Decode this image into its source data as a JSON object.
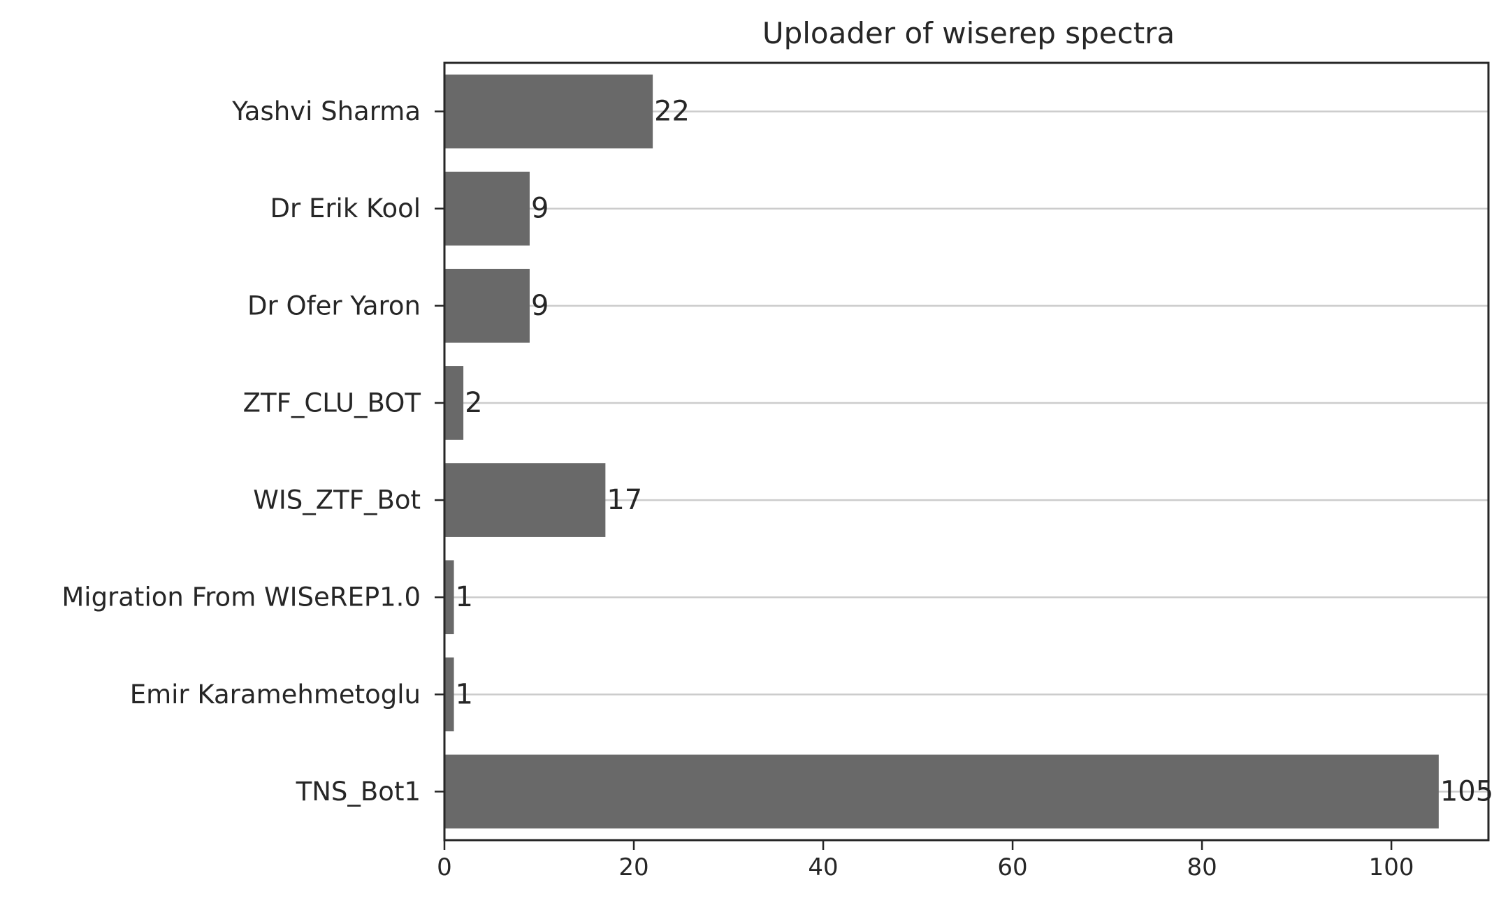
{
  "chart_data": {
    "type": "bar",
    "orientation": "horizontal",
    "title": "Uploader of wiserep spectra",
    "xlabel": "",
    "ylabel": "",
    "categories": [
      "Yashvi Sharma",
      "Dr Erik Kool",
      "Dr Ofer Yaron",
      "ZTF_CLU_BOT",
      "WIS_ZTF_Bot",
      "Migration From WISeREP1.0",
      "Emir Karamehmetoglu",
      "TNS_Bot1"
    ],
    "values": [
      22,
      9,
      9,
      2,
      17,
      1,
      1,
      105
    ],
    "xlim": [
      0,
      110.25
    ],
    "xticks": [
      0,
      20,
      40,
      60,
      80,
      100
    ],
    "grid": "horizontal",
    "bar_color": "#696969",
    "data_labels": true
  }
}
